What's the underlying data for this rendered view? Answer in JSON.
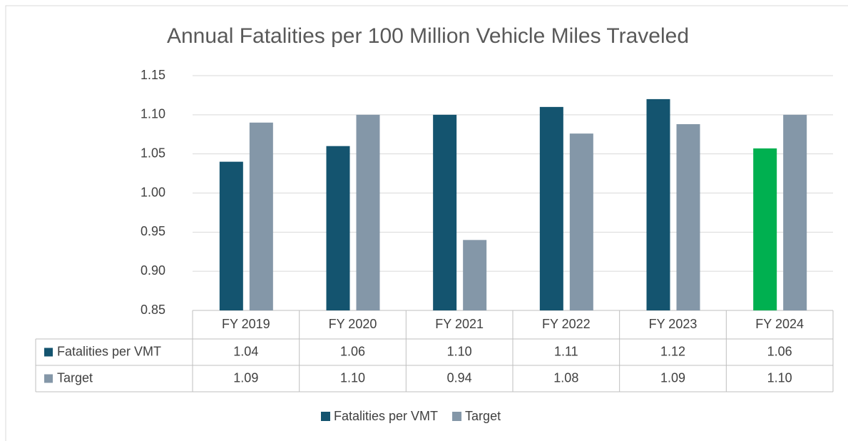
{
  "chart_data": {
    "type": "bar",
    "title": "Annual Fatalities per 100 Million Vehicle Miles Traveled",
    "categories": [
      "FY 2019",
      "FY 2020",
      "FY 2021",
      "FY 2022",
      "FY 2023",
      "FY 2024"
    ],
    "series": [
      {
        "name": "Fatalities per VMT",
        "color": "#14546f",
        "colors": [
          "#14546f",
          "#14546f",
          "#14546f",
          "#14546f",
          "#14546f",
          "#00b050"
        ],
        "values": [
          1.04,
          1.06,
          1.1,
          1.11,
          1.12,
          1.057
        ],
        "value_labels": [
          "1.04",
          "1.06",
          "1.10",
          "1.11",
          "1.12",
          "1.06"
        ]
      },
      {
        "name": "Target",
        "color": "#8497a8",
        "values": [
          1.09,
          1.1,
          0.94,
          1.076,
          1.088,
          1.1
        ],
        "value_labels": [
          "1.09",
          "1.10",
          "0.94",
          "1.08",
          "1.09",
          "1.10"
        ]
      }
    ],
    "ylim": [
      0.85,
      1.15
    ],
    "yticks": [
      0.85,
      {
        "value": 0.9,
        "label": "0.90"
      },
      0.95,
      {
        "value": 1,
        "label": "1.00"
      },
      1.05,
      {
        "value": 1.1,
        "label": "1.10"
      },
      1.15
    ],
    "grid": true
  }
}
